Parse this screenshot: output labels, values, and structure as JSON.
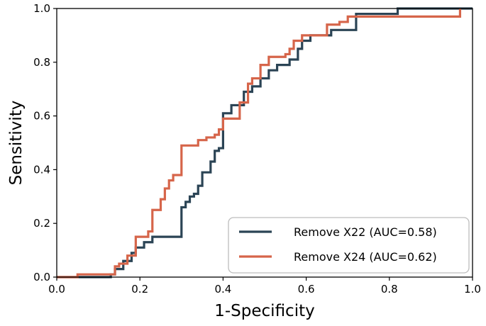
{
  "chart_data": {
    "type": "line",
    "title": "",
    "xlabel": "1-Specificity",
    "ylabel": "Sensitivity",
    "xlim": [
      0.0,
      1.0
    ],
    "ylim": [
      0.0,
      1.0
    ],
    "xticks": [
      "0.0",
      "0.2",
      "0.4",
      "0.6",
      "0.8",
      "1.0"
    ],
    "yticks": [
      "0.0",
      "0.2",
      "0.4",
      "0.6",
      "0.8",
      "1.0"
    ],
    "grid": false,
    "legend_position": "bottom-right",
    "series": [
      {
        "name": "Remove X22 (AUC=0.58)",
        "color": "#2b4455",
        "x": [
          0.0,
          0.13,
          0.13,
          0.14,
          0.14,
          0.16,
          0.16,
          0.18,
          0.18,
          0.19,
          0.19,
          0.21,
          0.21,
          0.23,
          0.23,
          0.3,
          0.3,
          0.31,
          0.31,
          0.32,
          0.32,
          0.33,
          0.33,
          0.34,
          0.34,
          0.35,
          0.35,
          0.37,
          0.37,
          0.38,
          0.38,
          0.39,
          0.39,
          0.4,
          0.4,
          0.42,
          0.42,
          0.45,
          0.45,
          0.47,
          0.47,
          0.49,
          0.49,
          0.51,
          0.51,
          0.53,
          0.53,
          0.56,
          0.56,
          0.58,
          0.58,
          0.59,
          0.59,
          0.61,
          0.61,
          0.66,
          0.66,
          0.72,
          0.72,
          0.82,
          0.82,
          1.0
        ],
        "y": [
          0.0,
          0.0,
          0.01,
          0.01,
          0.03,
          0.03,
          0.06,
          0.06,
          0.09,
          0.09,
          0.11,
          0.11,
          0.13,
          0.13,
          0.15,
          0.15,
          0.26,
          0.26,
          0.28,
          0.28,
          0.3,
          0.3,
          0.31,
          0.31,
          0.34,
          0.34,
          0.39,
          0.39,
          0.43,
          0.43,
          0.47,
          0.47,
          0.48,
          0.48,
          0.61,
          0.61,
          0.64,
          0.64,
          0.69,
          0.69,
          0.71,
          0.71,
          0.74,
          0.74,
          0.77,
          0.77,
          0.79,
          0.79,
          0.81,
          0.81,
          0.85,
          0.85,
          0.88,
          0.88,
          0.9,
          0.9,
          0.92,
          0.92,
          0.98,
          0.98,
          1.0,
          1.0
        ]
      },
      {
        "name": "Remove X24 (AUC=0.62)",
        "color": "#d6654a",
        "x": [
          0.0,
          0.05,
          0.05,
          0.14,
          0.14,
          0.15,
          0.15,
          0.17,
          0.17,
          0.19,
          0.19,
          0.22,
          0.22,
          0.23,
          0.23,
          0.25,
          0.25,
          0.26,
          0.26,
          0.27,
          0.27,
          0.28,
          0.28,
          0.3,
          0.3,
          0.34,
          0.34,
          0.36,
          0.36,
          0.38,
          0.38,
          0.39,
          0.39,
          0.4,
          0.4,
          0.44,
          0.44,
          0.46,
          0.46,
          0.47,
          0.47,
          0.49,
          0.49,
          0.51,
          0.51,
          0.55,
          0.55,
          0.56,
          0.56,
          0.57,
          0.57,
          0.59,
          0.59,
          0.65,
          0.65,
          0.68,
          0.68,
          0.7,
          0.7,
          0.97,
          0.97
        ],
        "y": [
          0.0,
          0.0,
          0.01,
          0.01,
          0.04,
          0.04,
          0.05,
          0.05,
          0.08,
          0.08,
          0.15,
          0.15,
          0.17,
          0.17,
          0.25,
          0.25,
          0.29,
          0.29,
          0.33,
          0.33,
          0.36,
          0.36,
          0.38,
          0.38,
          0.49,
          0.49,
          0.51,
          0.51,
          0.52,
          0.52,
          0.53,
          0.53,
          0.55,
          0.55,
          0.59,
          0.59,
          0.65,
          0.65,
          0.72,
          0.72,
          0.74,
          0.74,
          0.79,
          0.79,
          0.82,
          0.82,
          0.83,
          0.83,
          0.85,
          0.85,
          0.88,
          0.88,
          0.9,
          0.9,
          0.94,
          0.94,
          0.95,
          0.95,
          0.97,
          0.97,
          1.0
        ]
      }
    ]
  }
}
